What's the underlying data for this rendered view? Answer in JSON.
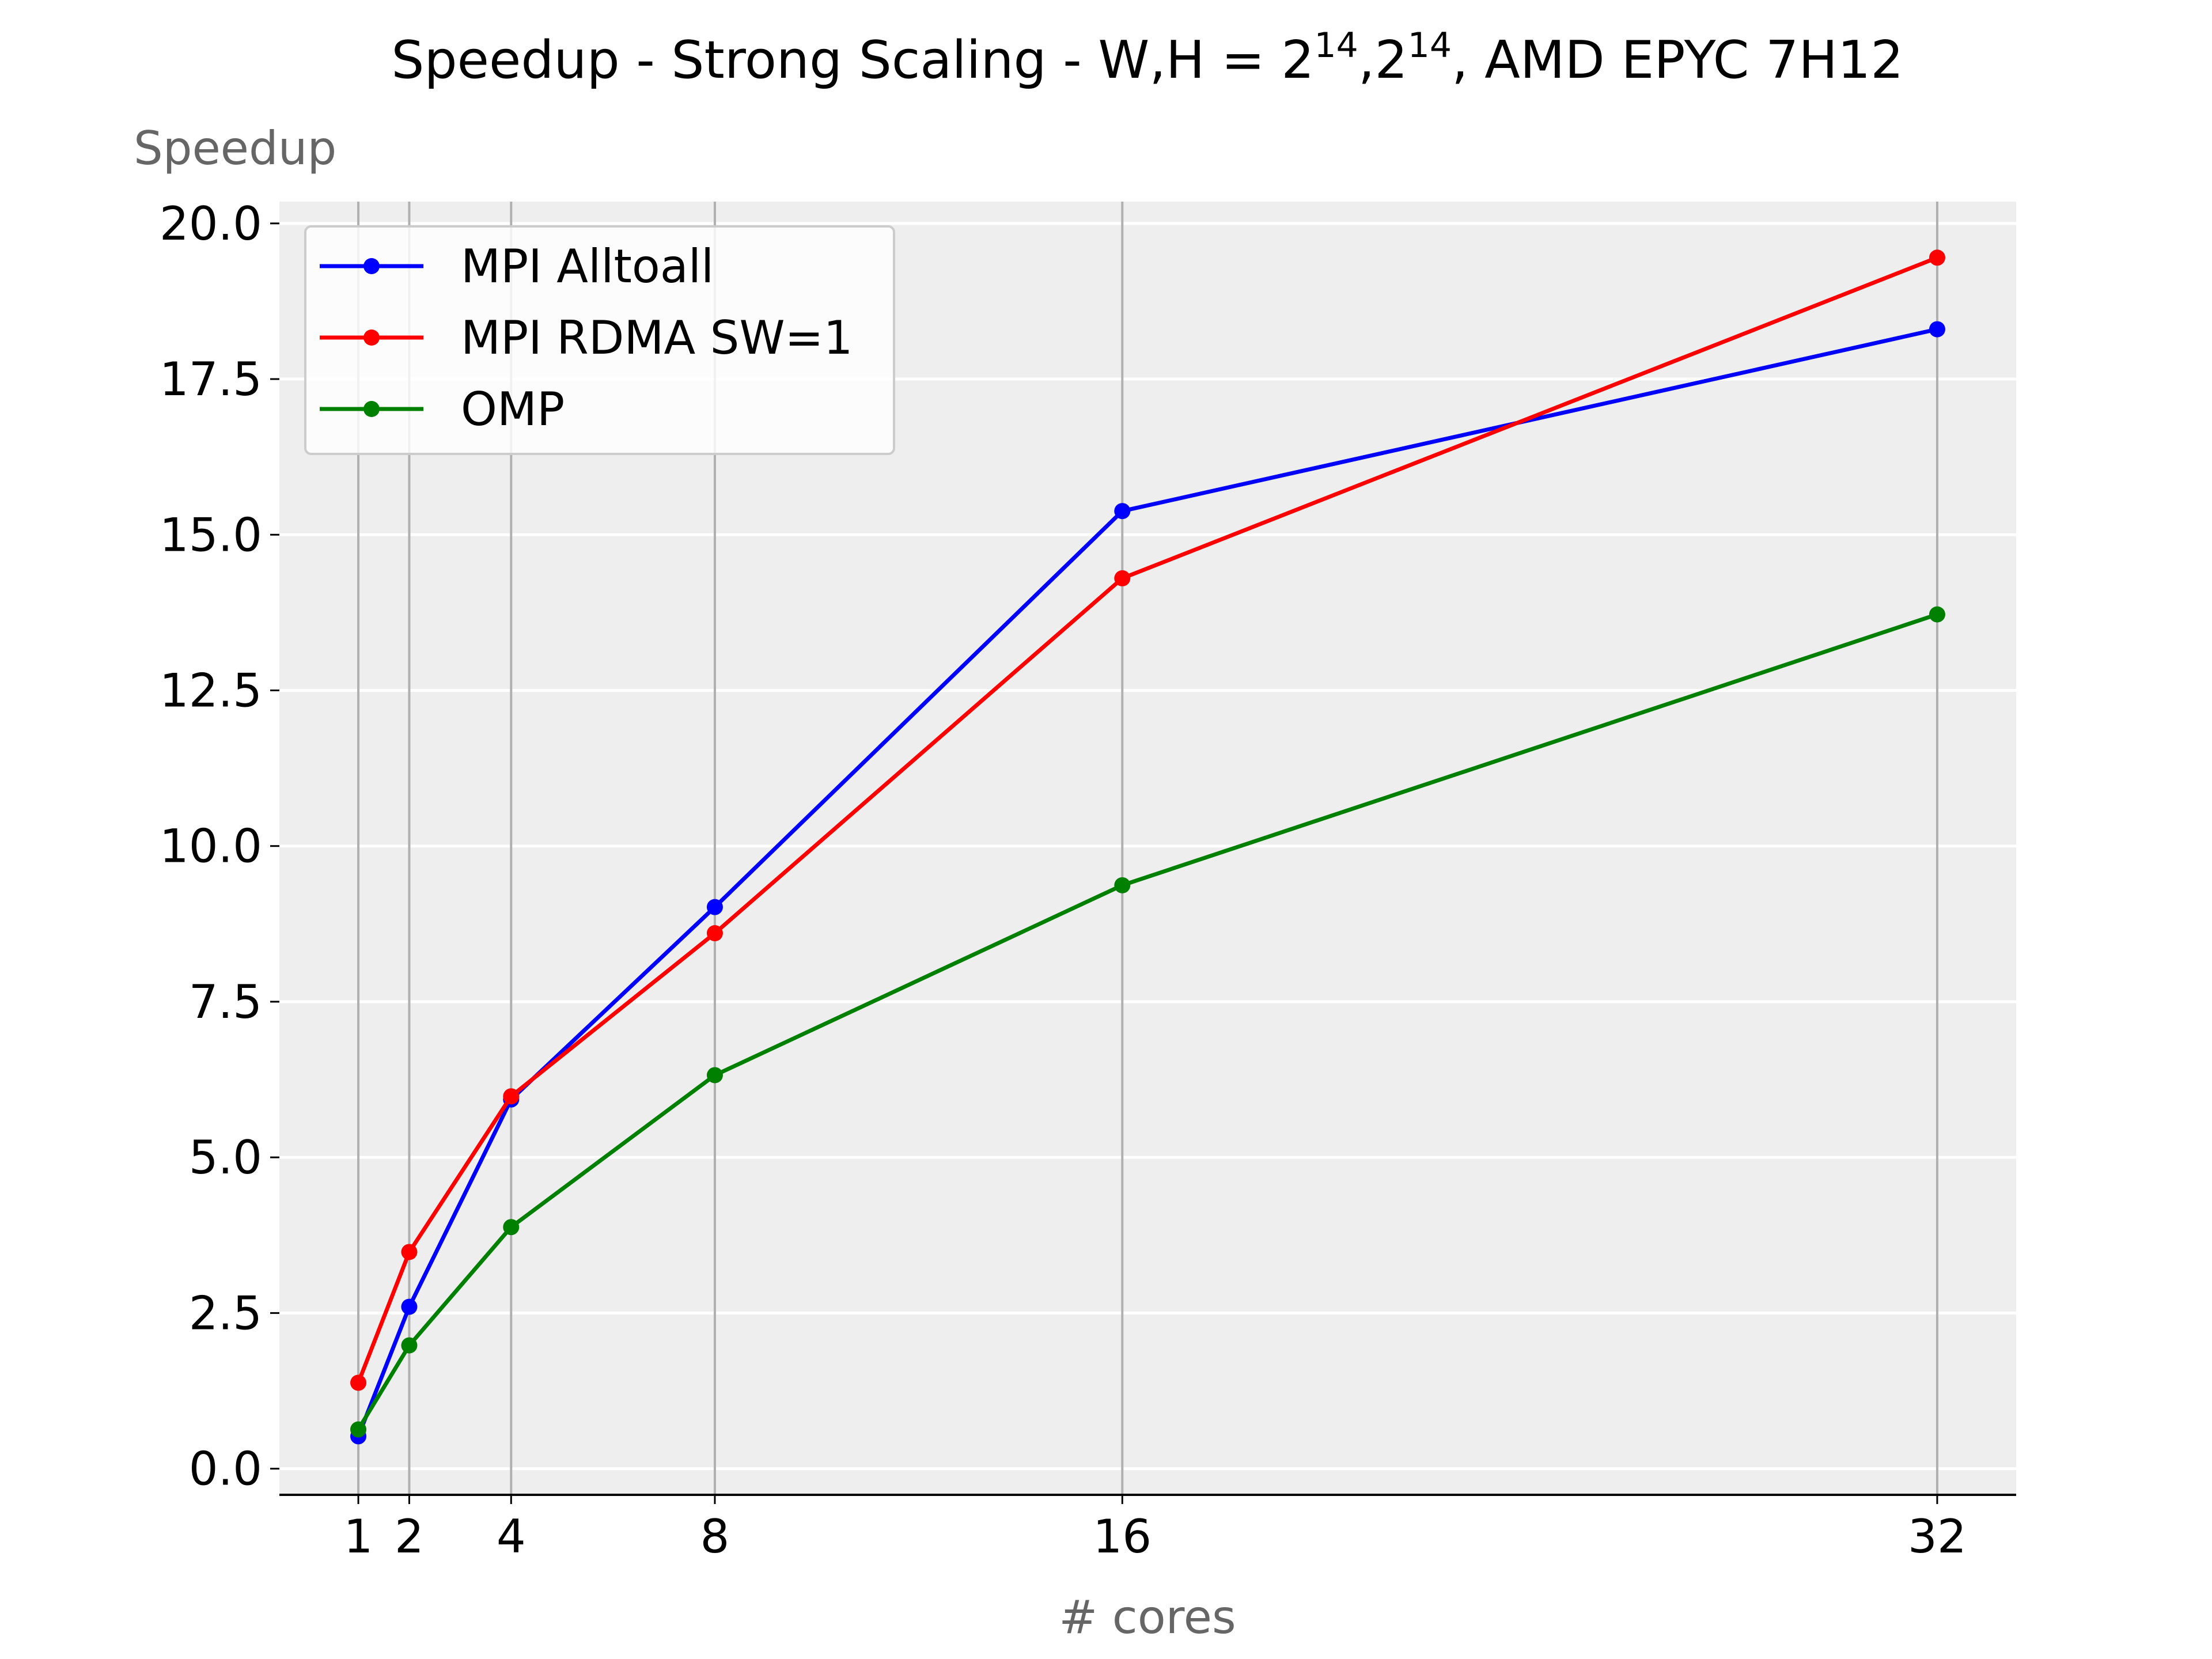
{
  "chart_data": {
    "type": "line",
    "title": {
      "main": "Speedup - Strong Scaling - W,H = 2",
      "exp1": "14",
      "mid": ",2",
      "exp2": "14",
      "tail": ", AMD EPYC 7H12"
    },
    "xlabel": "# cores",
    "ylabel": "Speedup",
    "x": [
      1,
      2,
      4,
      8,
      16,
      32
    ],
    "x_tick_labels": [
      "1",
      "2",
      "4",
      "8",
      "16",
      "32"
    ],
    "xlim": [
      -0.55,
      33.55
    ],
    "ylim": [
      -0.42,
      20.35
    ],
    "y_ticks": [
      0.0,
      2.5,
      5.0,
      7.5,
      10.0,
      12.5,
      15.0,
      17.5,
      20.0
    ],
    "y_tick_labels": [
      "0.0",
      "2.5",
      "5.0",
      "7.5",
      "10.0",
      "12.5",
      "15.0",
      "17.5",
      "20.0"
    ],
    "grid": "x-gray-y-white",
    "legend_position": "top-left",
    "series": [
      {
        "name": "MPI Alltoall",
        "color": "#0000ff",
        "values": [
          0.52,
          2.6,
          5.93,
          9.02,
          15.38,
          18.3
        ]
      },
      {
        "name": "MPI RDMA SW=1",
        "color": "#ff0000",
        "values": [
          1.38,
          3.48,
          5.98,
          8.6,
          14.3,
          19.45
        ]
      },
      {
        "name": "OMP",
        "color": "#008000",
        "values": [
          0.63,
          1.98,
          3.88,
          6.32,
          9.37,
          13.72
        ]
      }
    ]
  }
}
